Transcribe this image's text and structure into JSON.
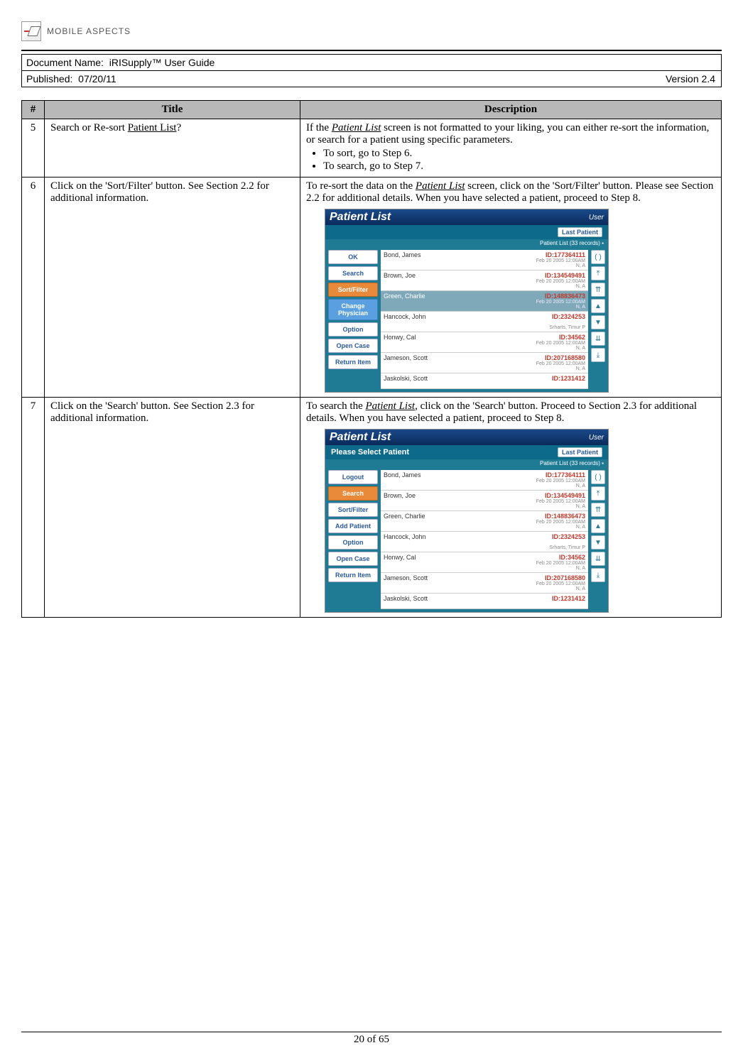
{
  "logo_text": "MOBILE ASPECTS",
  "doc_name_label": "Document Name:",
  "doc_name": "iRISupply™ User Guide",
  "published_label": "Published:",
  "published_date": "07/20/11",
  "version": "Version 2.4",
  "table": {
    "headers": {
      "num": "#",
      "title": "Title",
      "desc": "Description"
    },
    "rows": [
      {
        "num": "5",
        "title_plain": "Search or Re-sort ",
        "title_u": "Patient List",
        "title_tail": "?",
        "desc_lead1": "If the ",
        "desc_u1": "Patient List",
        "desc_tail1": " screen is not formatted to your liking, you can either re-sort the information, or search for a patient using specific parameters.",
        "bullets": [
          "To sort, go to Step 6.",
          "To search, go to Step 7."
        ]
      },
      {
        "num": "6",
        "title": "Click on the 'Sort/Filter' button.  See Section 2.2 for additional information.",
        "desc_lead1": "To re-sort the data on the ",
        "desc_u1": "Patient List",
        "desc_tail1": " screen, click on the 'Sort/Filter' button.  Please see Section 2.2 for additional details.  When you have selected a patient, proceed to Step 8.",
        "shot": "a"
      },
      {
        "num": "7",
        "title": "Click on the 'Search' button.  See Section 2.3 for additional information.",
        "desc_lead1": "To search the ",
        "desc_u1": "Patient List",
        "desc_tail1": ", click on the 'Search' button.  Proceed to Section 2.3 for additional details.  When you have selected a patient, proceed to Step 8.",
        "shot": "b"
      }
    ]
  },
  "shot_common": {
    "title": "Patient List",
    "user": "User",
    "last_patient": "Last Patient",
    "records": "Patient List (33 records)",
    "patients": [
      {
        "name": "Bond, James",
        "id": "ID:177364111",
        "date": "Feb 20 2005 12:00AM",
        "ext": "N, A"
      },
      {
        "name": "Brown, Joe",
        "id": "ID:134549491",
        "date": "Feb 20 2005 12:00AM",
        "ext": "N, A"
      },
      {
        "name": "Green, Charlie",
        "id": "ID:148836473",
        "date": "Feb 20 2005 12:00AM",
        "ext": "N, A"
      },
      {
        "name": "Hancock, John",
        "id": "ID:2324253",
        "date": "",
        "ext": "Srharts, Timur P"
      },
      {
        "name": "Honwy, Cal",
        "id": "ID:34562",
        "date": "Feb 20 2005 12:00AM",
        "ext": "N, A"
      },
      {
        "name": "Jameson, Scott",
        "id": "ID:207168580",
        "date": "Feb 20 2005 12:00AM",
        "ext": "N, A"
      },
      {
        "name": "Jaskolski, Scott",
        "id": "ID:1231412",
        "date": "",
        "ext": ""
      }
    ],
    "nav_glyphs": [
      "( )",
      "⤒",
      "⇈",
      "▲",
      "▼",
      "⇊",
      "⤓"
    ]
  },
  "shot_a": {
    "subtitle": "",
    "buttons": [
      {
        "label": "OK",
        "style": ""
      },
      {
        "label": "Search",
        "style": ""
      },
      {
        "label": "Sort/Filter",
        "style": "hl-orange"
      },
      {
        "label": "Change Physician",
        "style": "hl-blue"
      },
      {
        "label": "Option",
        "style": ""
      },
      {
        "label": "Open Case",
        "style": ""
      },
      {
        "label": "Return Item",
        "style": ""
      }
    ],
    "selected_index": 2
  },
  "shot_b": {
    "subtitle": "Please Select Patient",
    "buttons": [
      {
        "label": "Logout",
        "style": ""
      },
      {
        "label": "Search",
        "style": "hl-orange"
      },
      {
        "label": "Sort/Filter",
        "style": ""
      },
      {
        "label": "Add Patient",
        "style": ""
      },
      {
        "label": "Option",
        "style": ""
      },
      {
        "label": "Open Case",
        "style": ""
      },
      {
        "label": "Return Item",
        "style": ""
      }
    ],
    "selected_index": -1
  },
  "footer": "20 of 65"
}
